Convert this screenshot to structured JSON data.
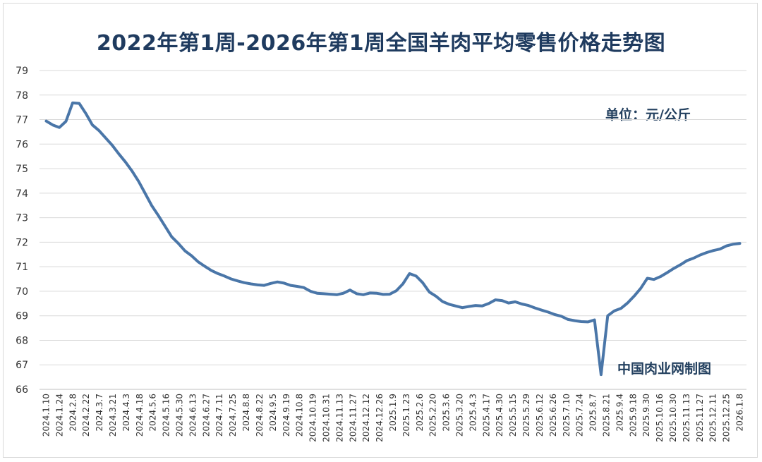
{
  "chart_data": {
    "type": "line",
    "title": "2022年第1周-2026年第1周全国羊肉平均零售价格走势图",
    "unit_note": "单位：元/公斤",
    "source_note": "中国肉业网制图",
    "xlabel": "",
    "ylabel": "",
    "ylim": [
      66,
      79
    ],
    "yticks": [
      66,
      67,
      68,
      69,
      70,
      71,
      72,
      73,
      74,
      75,
      76,
      77,
      78,
      79
    ],
    "grid": true,
    "x_tick_labels": [
      "2024.1.10",
      "2024.1.24",
      "2024.2.8",
      "2024.2.22",
      "2024.3.7",
      "2024.3.21",
      "2024.4.3",
      "2024.4.18",
      "2024.5.6",
      "2024.5.16",
      "2024.5.30",
      "2024.6.13",
      "2024.6.27",
      "2024.7.11",
      "2024.7.25",
      "2024.8.8",
      "2024.8.22",
      "2024.9.5",
      "2024.9.19",
      "2024.10.8",
      "2024.10.19",
      "2024.10.31",
      "2024.11.13",
      "2024.11.27",
      "2024.12.12",
      "2024.12.26",
      "2025.1.9",
      "2025.1.23",
      "2025.2.6",
      "2025.2.20",
      "2025.3.6",
      "2025.3.20",
      "2025.4.3",
      "2025.4.17",
      "2025.4.30",
      "2025.5.15",
      "2025.5.29",
      "2025.6.12",
      "2025.6.26",
      "2025.7.10",
      "2025.7.24",
      "2025.8.7",
      "2025.8.21",
      "2025.9.4",
      "2025.9.18",
      "2025.9.30",
      "2025.10.16",
      "2025.10.30",
      "2025.11.13",
      "2025.11.27",
      "2025.12.11",
      "2025.12.25",
      "2026.1.8"
    ],
    "series": [
      {
        "name": "",
        "color": "#4a76a8",
        "values": [
          76.94,
          76.78,
          76.68,
          76.93,
          77.68,
          77.66,
          77.25,
          76.78,
          76.55,
          76.25,
          75.95,
          75.6,
          75.27,
          74.9,
          74.48,
          73.98,
          73.48,
          73.08,
          72.65,
          72.22,
          71.95,
          71.65,
          71.45,
          71.2,
          71.02,
          70.85,
          70.72,
          70.62,
          70.5,
          70.42,
          70.35,
          70.3,
          70.26,
          70.24,
          70.32,
          70.38,
          70.33,
          70.24,
          70.2,
          70.15,
          70.0,
          69.92,
          69.9,
          69.88,
          69.86,
          69.92,
          70.05,
          69.9,
          69.86,
          69.93,
          69.92,
          69.87,
          69.88,
          70.02,
          70.3,
          70.72,
          70.62,
          70.35,
          69.97,
          69.8,
          69.58,
          69.47,
          69.4,
          69.33,
          69.38,
          69.42,
          69.4,
          69.5,
          69.65,
          69.62,
          69.52,
          69.57,
          69.48,
          69.42,
          69.32,
          69.23,
          69.15,
          69.05,
          68.98,
          68.85,
          68.8,
          68.76,
          68.75,
          68.83,
          66.6,
          69.0,
          69.2,
          69.3,
          69.52,
          69.8,
          70.12,
          70.53,
          70.48,
          70.6,
          70.76,
          70.93,
          71.08,
          71.25,
          71.35,
          71.48,
          71.58,
          71.66,
          71.72,
          71.85,
          71.92,
          71.95
        ]
      }
    ]
  }
}
